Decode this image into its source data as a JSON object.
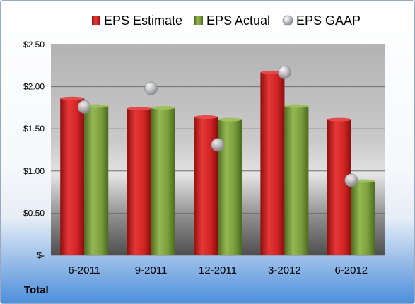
{
  "chart_data": {
    "type": "bar",
    "categories": [
      "6-2011",
      "9-2011",
      "12-2011",
      "3-2012",
      "6-2012"
    ],
    "series": [
      {
        "name": "EPS Estimate",
        "kind": "bar",
        "color": "#d42a2a",
        "values": [
          1.86,
          1.74,
          1.64,
          2.17,
          1.61
        ]
      },
      {
        "name": "EPS Actual",
        "kind": "bar",
        "color": "#7da040",
        "values": [
          1.77,
          1.75,
          1.61,
          1.77,
          0.88
        ]
      },
      {
        "name": "EPS GAAP",
        "kind": "marker",
        "color": "#c4c8cc",
        "values": [
          1.76,
          1.98,
          1.31,
          2.17,
          0.89
        ]
      }
    ],
    "y_ticks": [
      {
        "value": 2.5,
        "label": "$2.50"
      },
      {
        "value": 2.0,
        "label": "$2.00"
      },
      {
        "value": 1.5,
        "label": "$1.50"
      },
      {
        "value": 1.0,
        "label": "$1.00"
      },
      {
        "value": 0.5,
        "label": "$0.50"
      },
      {
        "value": 0.0,
        "label": "$-"
      }
    ],
    "ylim": [
      0,
      2.5
    ],
    "grid": true,
    "legend_position": "top",
    "axis_footer": "Total"
  }
}
